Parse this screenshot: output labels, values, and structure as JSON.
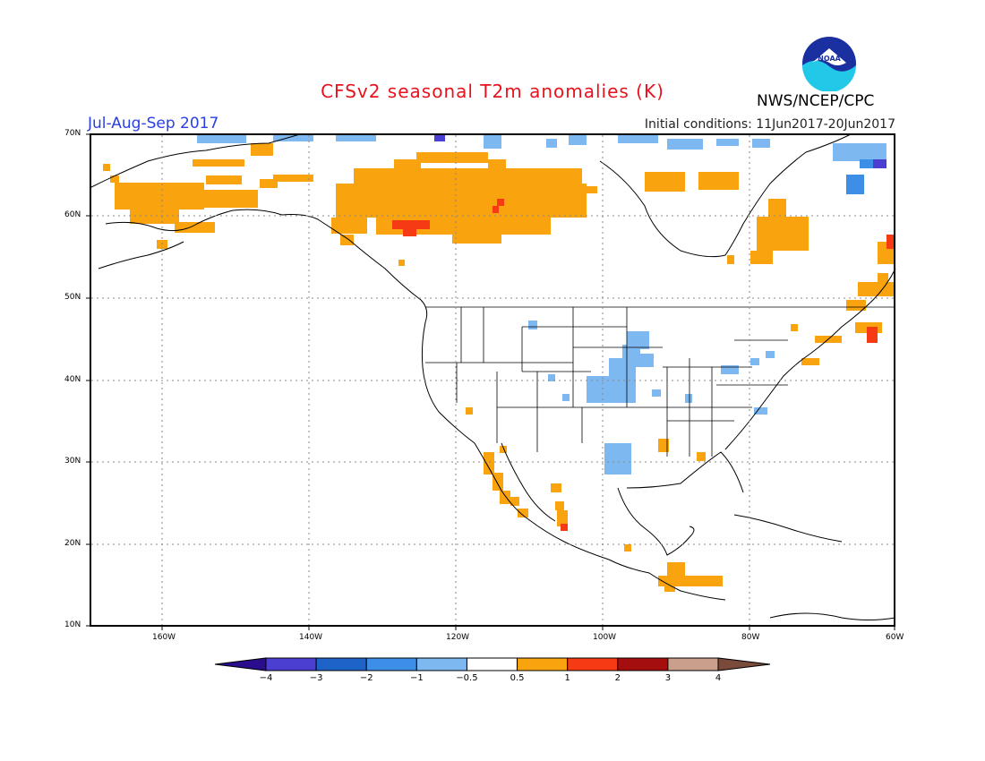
{
  "title": "CFSv2 seasonal T2m anomalies (K)",
  "season": "Jul-Aug-Sep 2017",
  "initial_conditions": "Initial conditions: 11Jun2017-20Jun2017",
  "organization": "NWS/NCEP/CPC",
  "logo_text": "NOAA",
  "colors": {
    "title": "#e8121f",
    "season": "#2a3fe0",
    "frame": "#000000"
  },
  "lat_labels": [
    "70N",
    "60N",
    "50N",
    "40N",
    "30N",
    "20N",
    "10N"
  ],
  "lon_labels": [
    "160W",
    "140W",
    "120W",
    "100W",
    "80W",
    "60W"
  ],
  "colorbar": {
    "labels": [
      "-4",
      "-3",
      "-2",
      "-1",
      "-0.5",
      "0.5",
      "1",
      "2",
      "3",
      "4"
    ],
    "colors": [
      "#2a0d8c",
      "#4b3fd1",
      "#1e63c8",
      "#3c8ee6",
      "#7eb8f0",
      "#ffffff",
      "#f9a30f",
      "#f53a14",
      "#a50e0e",
      "#c8a08c",
      "#7a4a3a"
    ]
  }
}
